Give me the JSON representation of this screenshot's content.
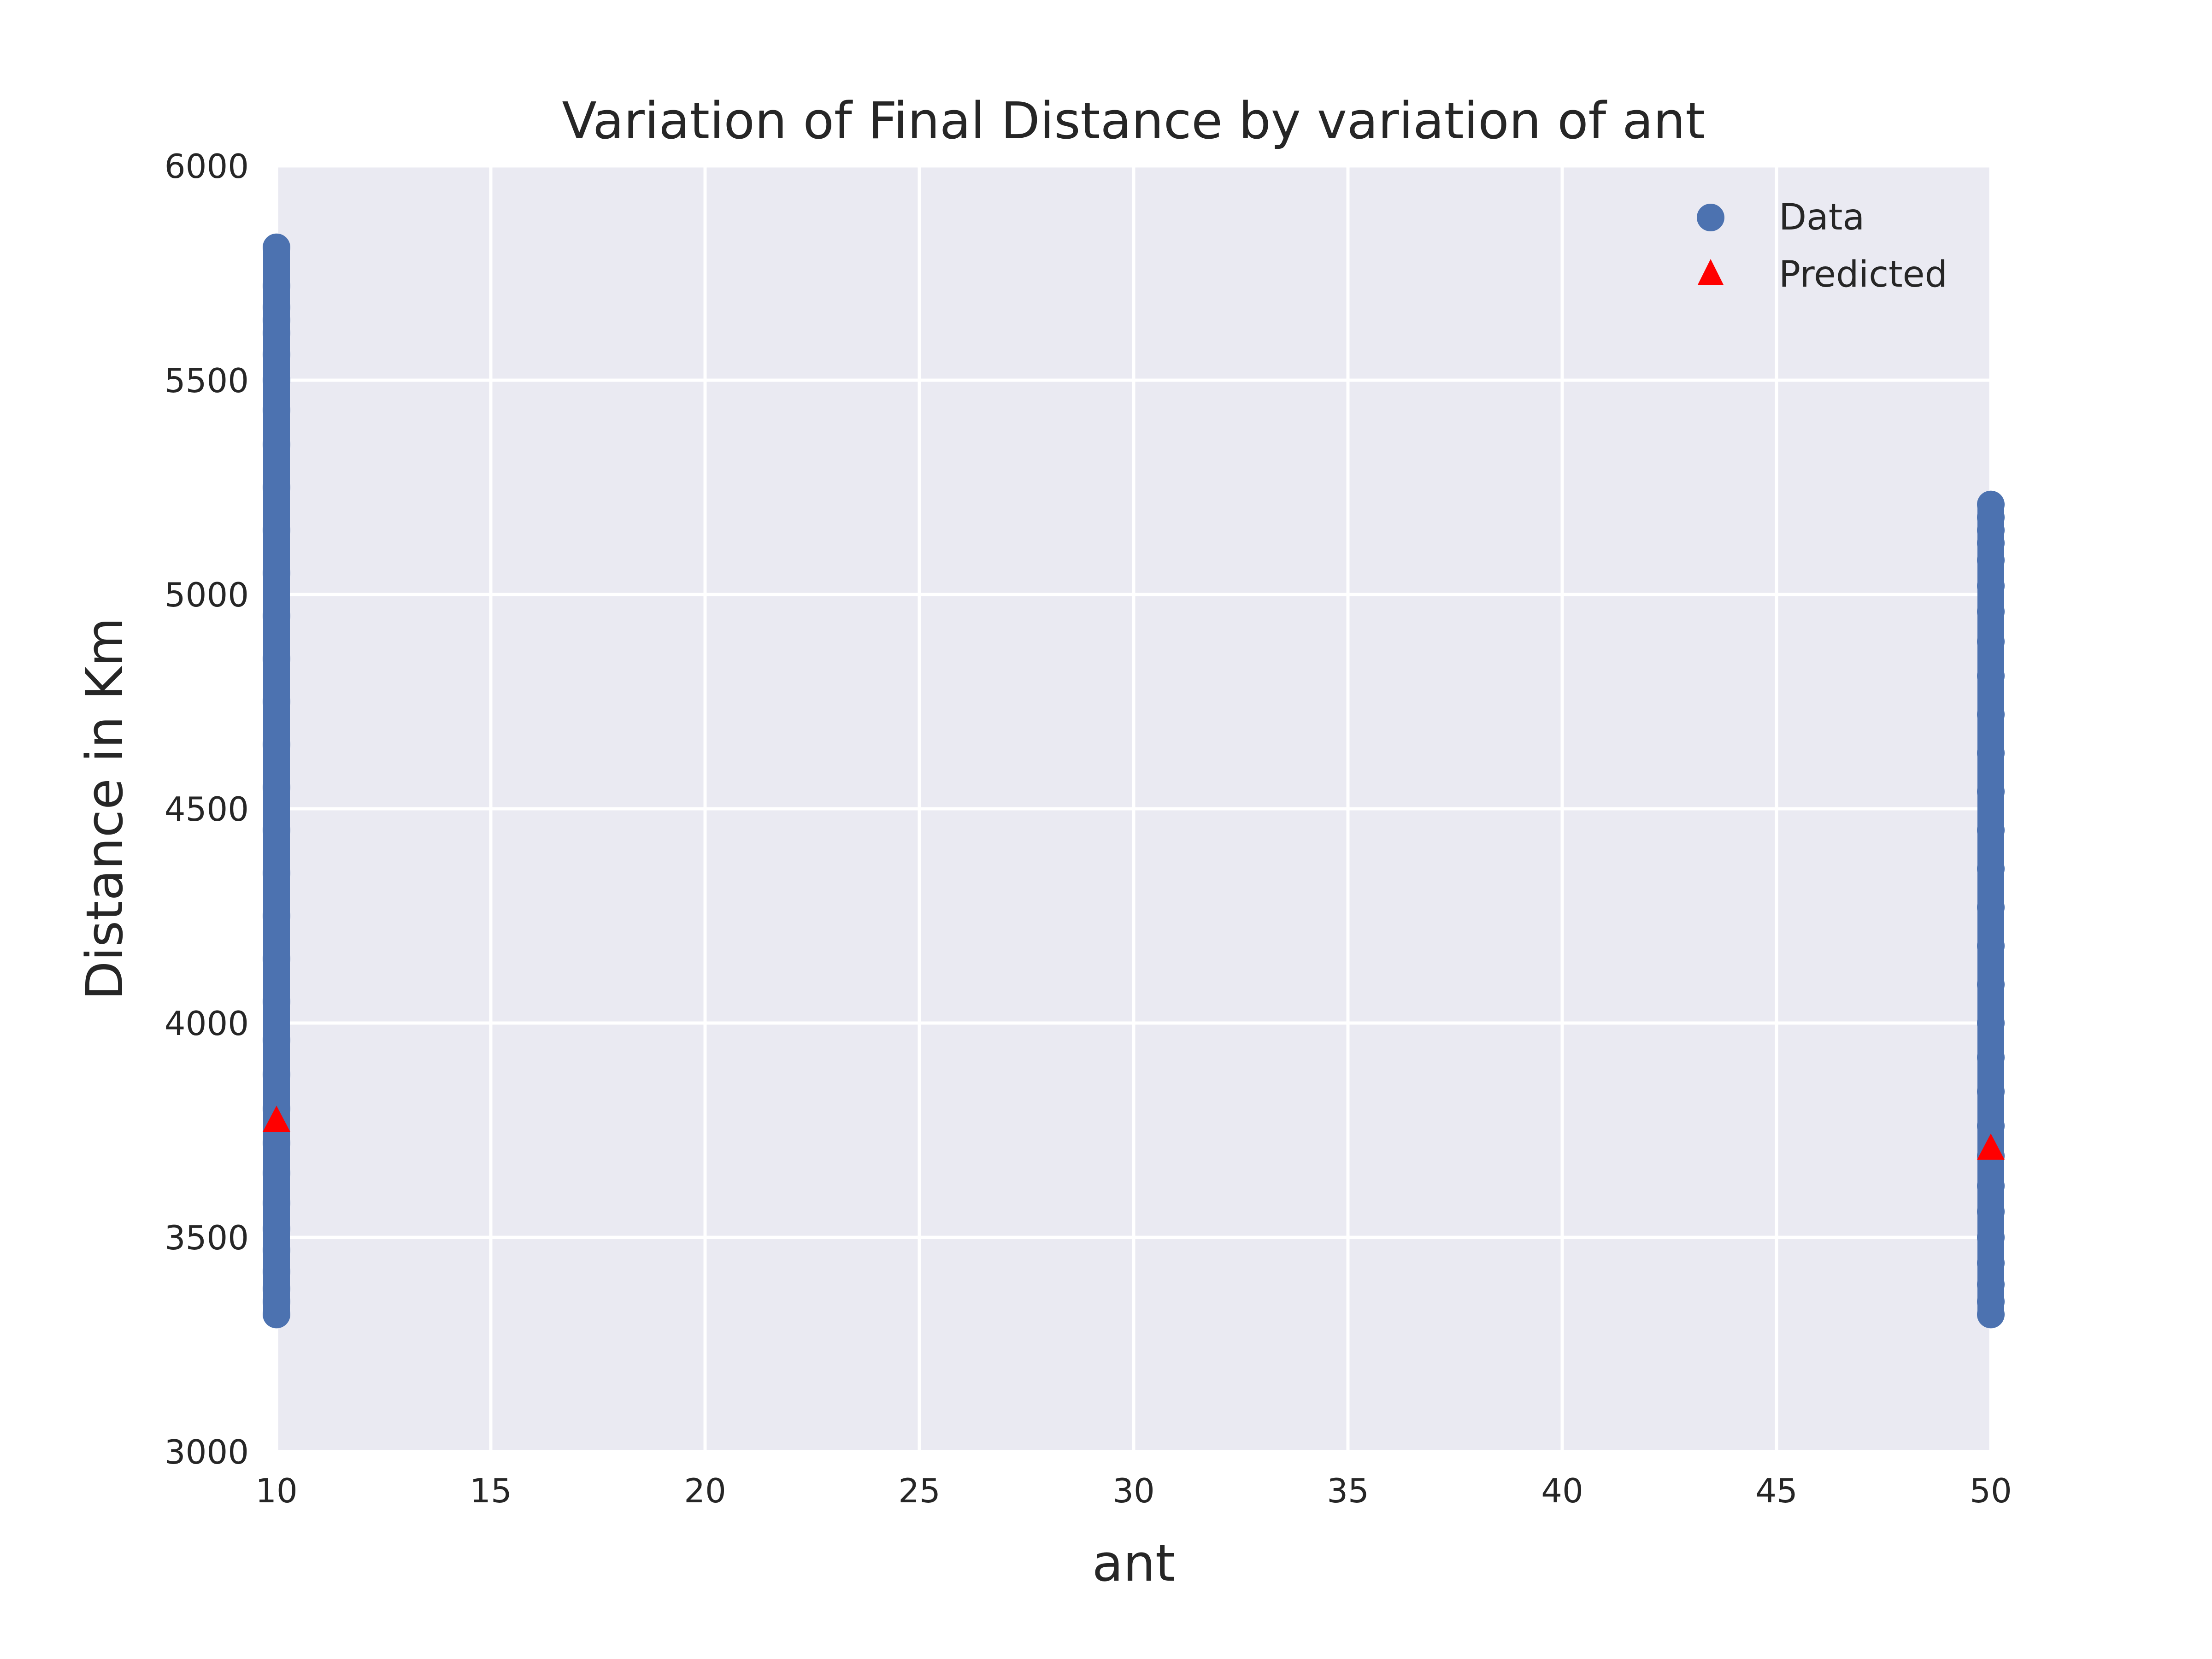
{
  "chart_data": {
    "type": "scatter",
    "title": "Variation of Final Distance by variation of ant",
    "xlabel": "ant",
    "ylabel": "Distance in Km",
    "xlim": [
      10,
      50
    ],
    "ylim": [
      3000,
      6000
    ],
    "xticks": [
      "10",
      "15",
      "20",
      "25",
      "30",
      "35",
      "40",
      "45",
      "50"
    ],
    "yticks": [
      "3000",
      "3500",
      "4000",
      "4500",
      "5000",
      "5500",
      "6000"
    ],
    "grid": true,
    "legend_position": "top-right",
    "colors": {
      "data": "#4c72b0",
      "predicted": "#ff0000",
      "background": "#eaeaf2",
      "grid": "#ffffff"
    },
    "series": [
      {
        "name": "Data",
        "marker": "circle",
        "points": [
          [
            10,
            3320
          ],
          [
            10,
            3350
          ],
          [
            10,
            3380
          ],
          [
            10,
            3420
          ],
          [
            10,
            3470
          ],
          [
            10,
            3520
          ],
          [
            10,
            3580
          ],
          [
            10,
            3650
          ],
          [
            10,
            3720
          ],
          [
            10,
            3800
          ],
          [
            10,
            3880
          ],
          [
            10,
            3960
          ],
          [
            10,
            4050
          ],
          [
            10,
            4150
          ],
          [
            10,
            4250
          ],
          [
            10,
            4350
          ],
          [
            10,
            4450
          ],
          [
            10,
            4550
          ],
          [
            10,
            4650
          ],
          [
            10,
            4750
          ],
          [
            10,
            4850
          ],
          [
            10,
            4950
          ],
          [
            10,
            5050
          ],
          [
            10,
            5150
          ],
          [
            10,
            5250
          ],
          [
            10,
            5350
          ],
          [
            10,
            5430
          ],
          [
            10,
            5500
          ],
          [
            10,
            5560
          ],
          [
            10,
            5610
          ],
          [
            10,
            5640
          ],
          [
            10,
            5670
          ],
          [
            10,
            5720
          ],
          [
            10,
            5810
          ],
          [
            50,
            3320
          ],
          [
            50,
            3350
          ],
          [
            50,
            3390
          ],
          [
            50,
            3440
          ],
          [
            50,
            3500
          ],
          [
            50,
            3560
          ],
          [
            50,
            3620
          ],
          [
            50,
            3690
          ],
          [
            50,
            3760
          ],
          [
            50,
            3840
          ],
          [
            50,
            3920
          ],
          [
            50,
            4000
          ],
          [
            50,
            4090
          ],
          [
            50,
            4180
          ],
          [
            50,
            4270
          ],
          [
            50,
            4360
          ],
          [
            50,
            4450
          ],
          [
            50,
            4540
          ],
          [
            50,
            4630
          ],
          [
            50,
            4720
          ],
          [
            50,
            4810
          ],
          [
            50,
            4890
          ],
          [
            50,
            4960
          ],
          [
            50,
            5020
          ],
          [
            50,
            5080
          ],
          [
            50,
            5120
          ],
          [
            50,
            5150
          ],
          [
            50,
            5180
          ],
          [
            50,
            5210
          ]
        ]
      },
      {
        "name": "Predicted",
        "marker": "triangle",
        "points": [
          [
            10,
            3775
          ],
          [
            50,
            3710
          ]
        ]
      }
    ]
  }
}
